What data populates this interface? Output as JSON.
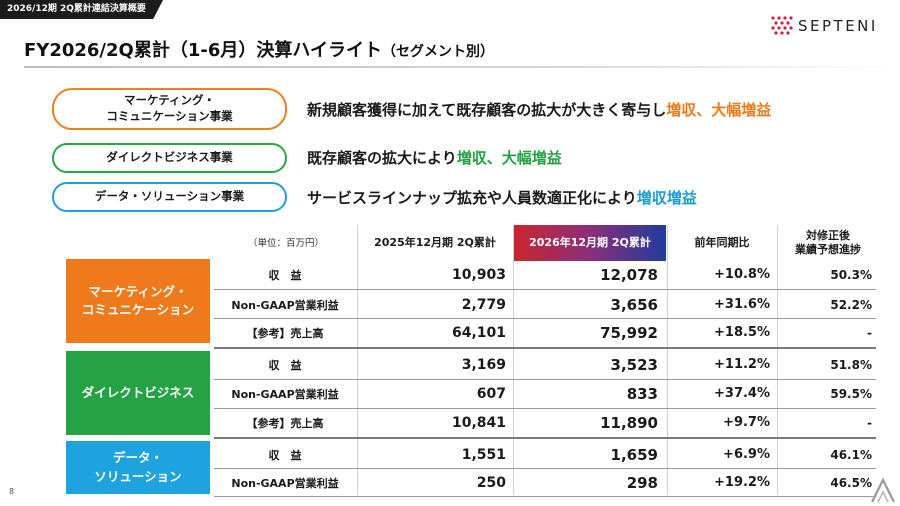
{
  "header": {
    "tag": "2026/12期 2Q累計連結決算概要",
    "logo_text": "SEPTENI",
    "title_main": "FY2026/2Q累計（1-6月）決算ハイライト",
    "title_sub": "（セグメント別）"
  },
  "segments": [
    {
      "name_line1": "マーケティング・",
      "name_line2": "コミュニケーション事業",
      "headline_plain": "新規顧客獲得に加えて既存顧客の拡大が大きく寄与し",
      "headline_accent": "増収、大幅増益",
      "accent_color": "#ee7a1a"
    },
    {
      "name": "ダイレクトビジネス事業",
      "headline_plain": "既存顧客の拡大により",
      "headline_accent": "増収、大幅増益",
      "accent_color": "#23a142"
    },
    {
      "name": "データ・ソリューション事業",
      "headline_plain": "サービスラインナップ拡充や人員数適正化により",
      "headline_accent": "増収増益",
      "accent_color": "#1b9bd6"
    }
  ],
  "table": {
    "unit": "（単位：百万円）",
    "headers": {
      "prev": "2025年12月期 2Q累計",
      "curr": "2026年12月期 2Q累計",
      "yoy": "前年同期比",
      "progress_line1": "対修正後",
      "progress_line2": "業績予想進捗"
    },
    "blocks": [
      {
        "label_line1": "マーケティング・",
        "label_line2": "コミュニケーション",
        "color": "#ef7a1c",
        "rows": [
          {
            "label": "収　益",
            "prev": "10,903",
            "curr": "12,078",
            "yoy": "+10.8%",
            "progress": "50.3%"
          },
          {
            "label": "Non-GAAP営業利益",
            "prev": "2,779",
            "curr": "3,656",
            "yoy": "+31.6%",
            "progress": "52.2%"
          },
          {
            "label": "【参考】売上高",
            "prev": "64,101",
            "curr": "75,992",
            "yoy": "+18.5%",
            "progress": "-"
          }
        ]
      },
      {
        "label_line1": "ダイレクトビジネス",
        "color": "#25a244",
        "rows": [
          {
            "label": "収　益",
            "prev": "3,169",
            "curr": "3,523",
            "yoy": "+11.2%",
            "progress": "51.8%"
          },
          {
            "label": "Non-GAAP営業利益",
            "prev": "607",
            "curr": "833",
            "yoy": "+37.4%",
            "progress": "59.5%"
          },
          {
            "label": "【参考】売上高",
            "prev": "10,841",
            "curr": "11,890",
            "yoy": "+9.7%",
            "progress": "-"
          }
        ]
      },
      {
        "label_line1": "データ・",
        "label_line2": "ソリューション",
        "color": "#1ea3de",
        "rows": [
          {
            "label": "収　益",
            "prev": "1,551",
            "curr": "1,659",
            "yoy": "+6.9%",
            "progress": "46.1%"
          },
          {
            "label": "Non-GAAP営業利益",
            "prev": "250",
            "curr": "298",
            "yoy": "+19.2%",
            "progress": "46.5%"
          }
        ]
      }
    ]
  },
  "footer": {
    "page_number": "8"
  }
}
